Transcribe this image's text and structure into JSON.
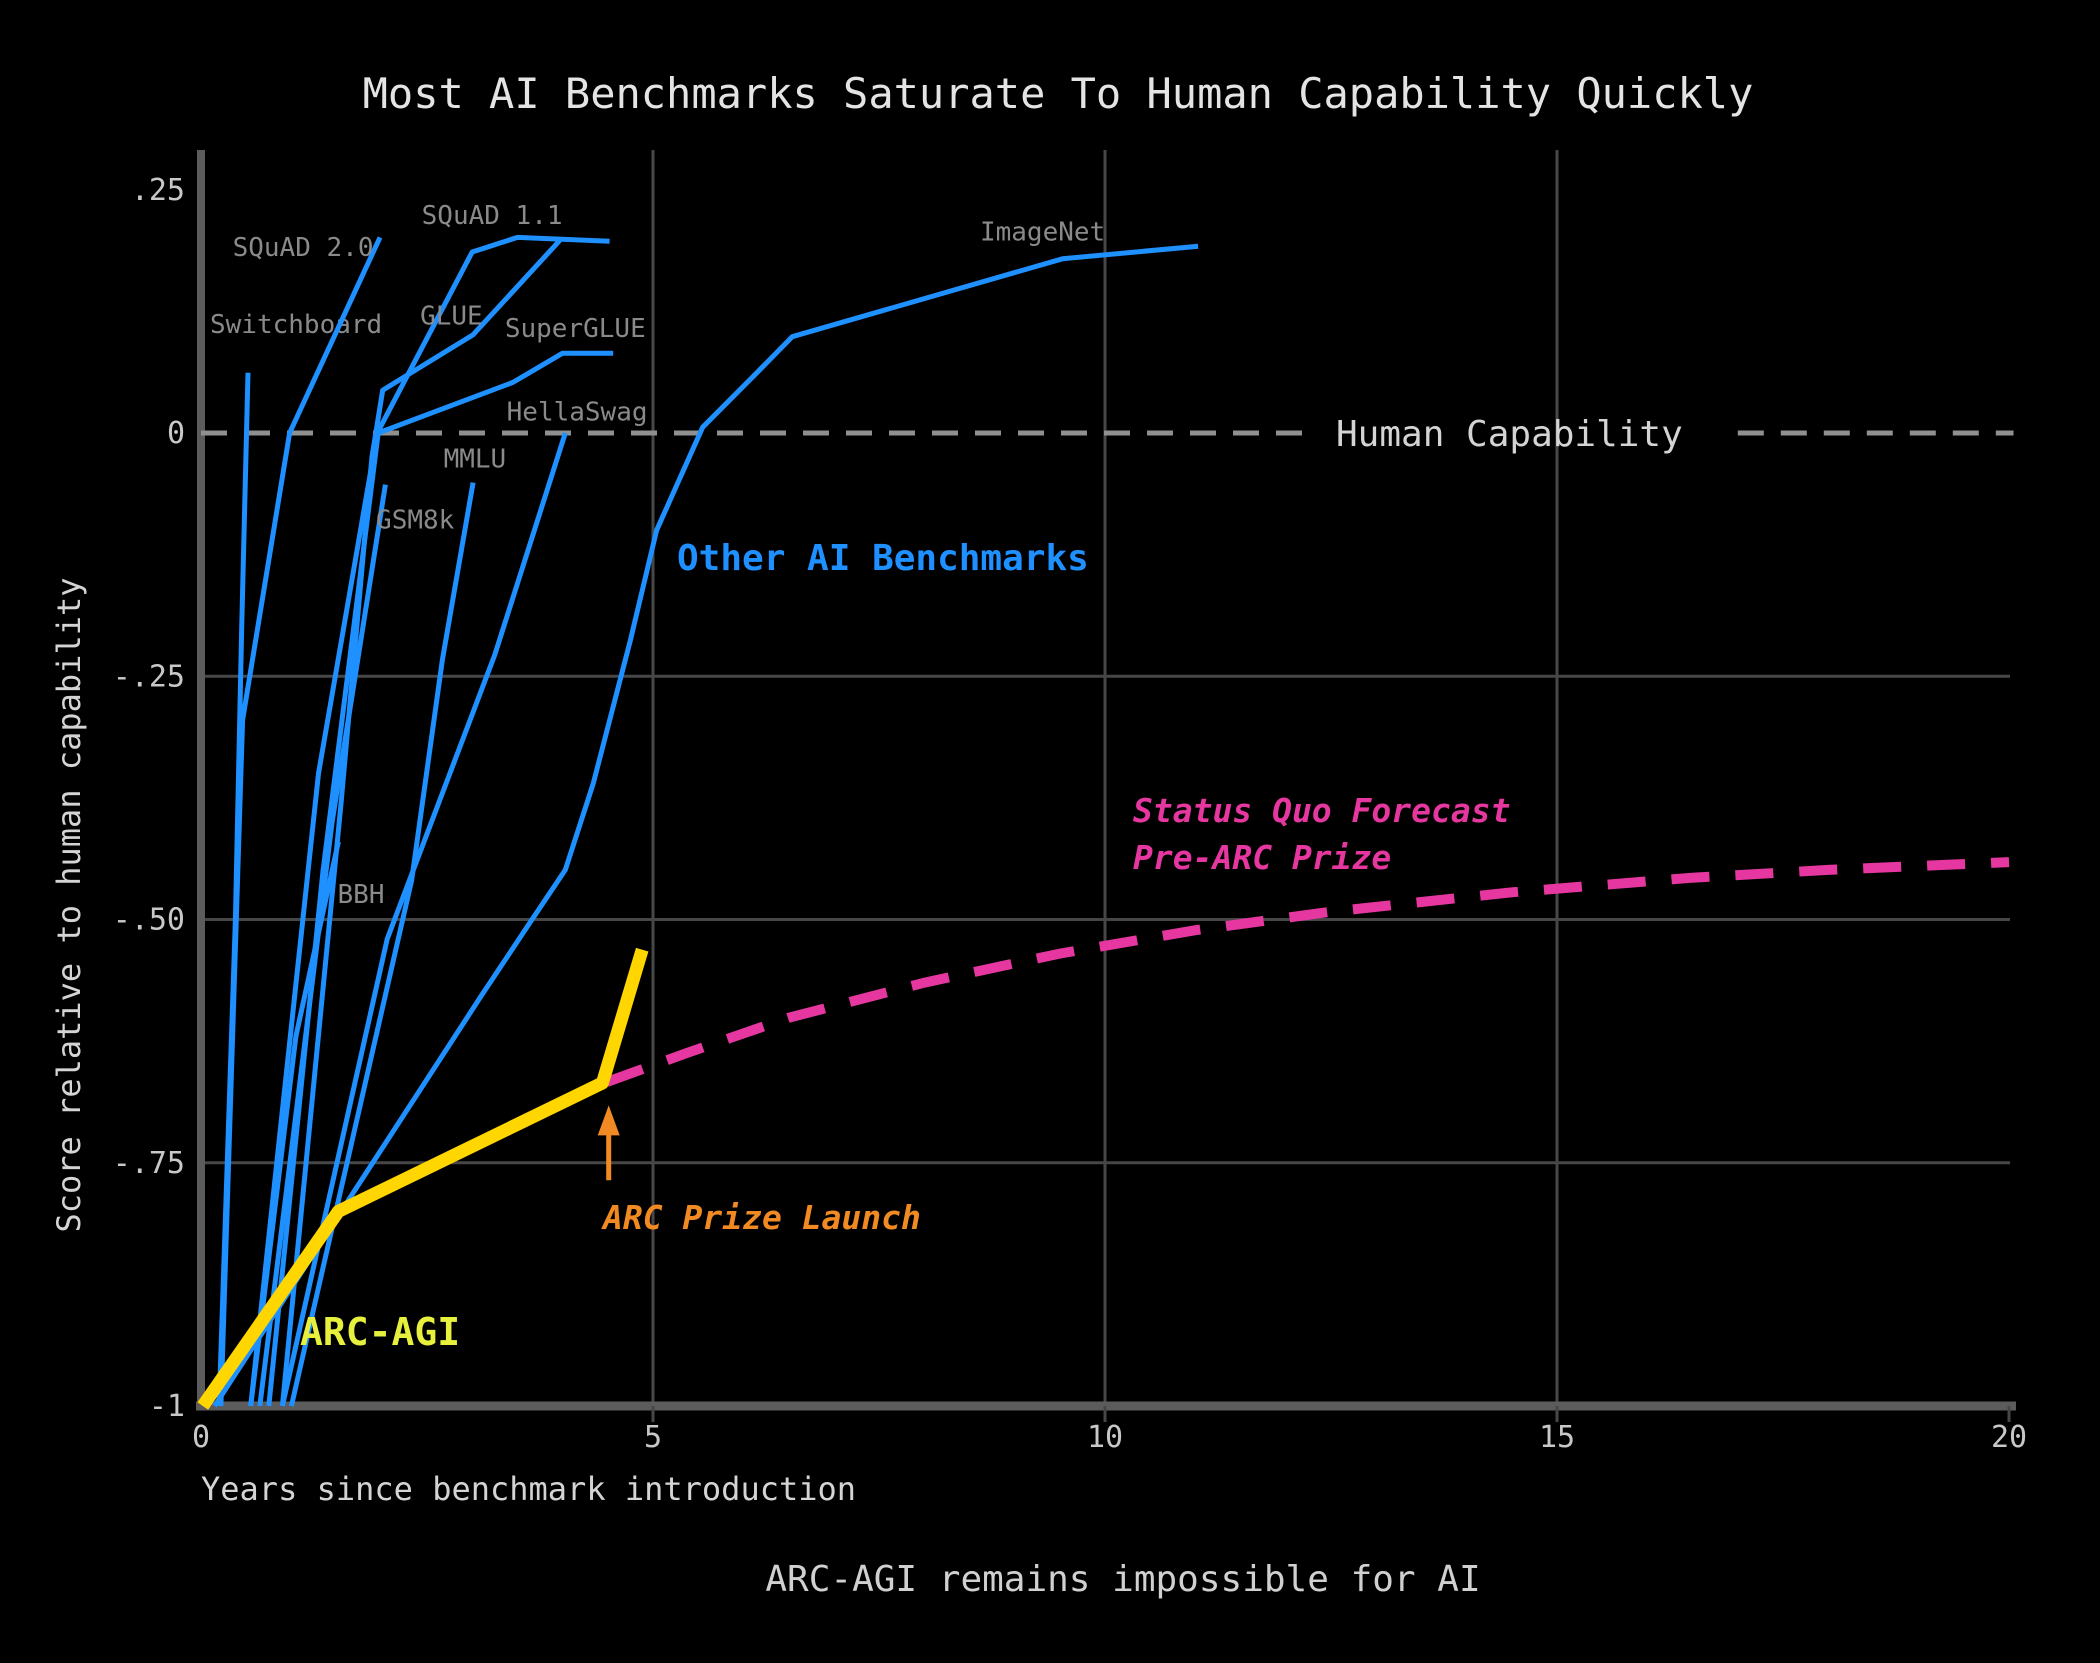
{
  "caption": "ARC-AGI remains impossible for AI",
  "colors": {
    "background": "#000000",
    "benchmark_blue": "#1E90FF",
    "arc_agi_yellow": "#FFD600",
    "arc_agi_label_lime": "#E7F13D",
    "forecast_pink": "#E5379F",
    "arc_prize_orange": "#F18A22",
    "human_dash_gray": "#909090",
    "grid_gray": "#474747",
    "spine_gray": "#5C5C5C",
    "series_label_gray": "#8A8A8A",
    "tick_label_gray": "#C8C8C8",
    "text_light": "#DADADA"
  },
  "chart_data": {
    "type": "line",
    "title": "Most AI Benchmarks Saturate To Human Capability Quickly",
    "xlabel": "Years since benchmark introduction",
    "ylabel": "Score relative to human capability",
    "xlim": [
      0,
      20
    ],
    "ylim": [
      -1,
      0.25
    ],
    "grid": true,
    "x_ticks": [
      {
        "v": 0,
        "label": "0"
      },
      {
        "v": 5,
        "label": "5"
      },
      {
        "v": 10,
        "label": "10"
      },
      {
        "v": 15,
        "label": "15"
      },
      {
        "v": 20,
        "label": "20"
      }
    ],
    "y_ticks": [
      {
        "v": 0.25,
        "label": ".25"
      },
      {
        "v": 0,
        "label": "0"
      },
      {
        "v": -0.25,
        "label": "-.25"
      },
      {
        "v": -0.5,
        "label": "-.50"
      },
      {
        "v": -0.75,
        "label": "-.75"
      },
      {
        "v": -1,
        "label": "-1"
      }
    ],
    "x_gridlines": [
      5,
      10,
      15
    ],
    "x_tick_marks": [
      5,
      10,
      15,
      20
    ],
    "y_gridlines": [
      -0.25,
      -0.5,
      -0.75
    ],
    "human_capability": {
      "label": "Human Capability",
      "value": 0,
      "dash_segments_years": [
        [
          0,
          12.35
        ],
        [
          17.0,
          20.05
        ]
      ],
      "label_year": 12.56
    },
    "other_benchmarks_label": "Other AI Benchmarks",
    "series": [
      {
        "name": "Switchboard",
        "points": [
          [
            0.2,
            -1.0
          ],
          [
            0.38,
            -0.5
          ],
          [
            0.45,
            -0.2
          ],
          [
            0.52,
            0.062
          ]
        ],
        "label": {
          "text": "Switchboard",
          "year": 0.1,
          "score": 0.112,
          "anchor": "start"
        }
      },
      {
        "name": "SQuAD 2.0",
        "points": [
          [
            0.22,
            -1.0
          ],
          [
            0.46,
            -0.295
          ],
          [
            0.98,
            0.0
          ],
          [
            1.98,
            0.201
          ]
        ],
        "label": {
          "text": "SQuAD 2.0",
          "year": 0.35,
          "score": 0.191,
          "anchor": "start"
        }
      },
      {
        "name": "SQuAD 1.1",
        "points": [
          [
            0.55,
            -1.0
          ],
          [
            1.3,
            -0.35
          ],
          [
            1.95,
            0.0
          ],
          [
            3.0,
            0.186
          ],
          [
            3.5,
            0.201
          ],
          [
            4.52,
            0.197
          ]
        ],
        "label": {
          "text": "SQuAD 1.1",
          "year": 3.22,
          "score": 0.224,
          "anchor": "middle"
        }
      },
      {
        "name": "GLUE",
        "points": [
          [
            0.9,
            -1.0
          ],
          [
            1.55,
            -0.38
          ],
          [
            1.89,
            -0.025
          ],
          [
            2.01,
            0.044
          ],
          [
            3.01,
            0.101
          ],
          [
            3.97,
            0.198
          ]
        ],
        "label": {
          "text": "GLUE",
          "year": 2.77,
          "score": 0.121,
          "anchor": "middle"
        }
      },
      {
        "name": "SuperGLUE",
        "points": [
          [
            0.75,
            -1.0
          ],
          [
            1.35,
            -0.45
          ],
          [
            1.96,
            0.0
          ],
          [
            3.45,
            0.052
          ],
          [
            4.0,
            0.082
          ],
          [
            4.56,
            0.082
          ]
        ],
        "label": {
          "text": "SuperGLUE",
          "year": 4.14,
          "score": 0.108,
          "anchor": "middle"
        }
      },
      {
        "name": "HellaSwag",
        "points": [
          [
            0.9,
            -1.0
          ],
          [
            2.06,
            -0.52
          ],
          [
            3.25,
            -0.228
          ],
          [
            4.03,
            0.0
          ]
        ],
        "label": {
          "text": "HellaSwag",
          "year": 4.16,
          "score": 0.022,
          "anchor": "middle"
        }
      },
      {
        "name": "MMLU",
        "points": [
          [
            1.0,
            -1.0
          ],
          [
            2.33,
            -0.46
          ],
          [
            2.67,
            -0.233
          ],
          [
            3.01,
            -0.051
          ]
        ],
        "label": {
          "text": "MMLU",
          "year": 3.03,
          "score": -0.026,
          "anchor": "middle"
        }
      },
      {
        "name": "GSM8k",
        "points": [
          [
            0.65,
            -1.0
          ],
          [
            1.45,
            -0.4
          ],
          [
            2.04,
            -0.053
          ]
        ],
        "label": {
          "text": "GSM8k",
          "year": 2.37,
          "score": -0.089,
          "anchor": "middle"
        }
      },
      {
        "name": "BBH",
        "points": [
          [
            0.55,
            -1.0
          ],
          [
            1.05,
            -0.62
          ],
          [
            1.52,
            -0.42
          ]
        ],
        "label": {
          "text": "BBH",
          "year": 1.77,
          "score": -0.474,
          "anchor": "middle"
        }
      },
      {
        "name": "ImageNet",
        "points": [
          [
            0.15,
            -1.0
          ],
          [
            3.09,
            -0.58
          ],
          [
            3.64,
            -0.503
          ],
          [
            4.03,
            -0.449
          ],
          [
            4.34,
            -0.36
          ],
          [
            4.75,
            -0.213
          ],
          [
            5.04,
            -0.1
          ],
          [
            5.55,
            0.006
          ],
          [
            6.16,
            0.063
          ],
          [
            6.54,
            0.099
          ],
          [
            9.53,
            0.179
          ],
          [
            11.03,
            0.192
          ]
        ],
        "label": {
          "text": "ImageNet",
          "year": 9.31,
          "score": 0.207,
          "anchor": "middle"
        }
      }
    ],
    "arc_agi": {
      "name": "ARC-AGI",
      "points": [
        [
          0.02,
          -1.0
        ],
        [
          1.52,
          -0.8
        ],
        [
          4.44,
          -0.668
        ],
        [
          4.88,
          -0.531
        ]
      ],
      "label": "ARC-AGI"
    },
    "forecast": {
      "name": "Status Quo Forecast Pre-ARC Prize",
      "points": [
        [
          4.49,
          -0.667
        ],
        [
          5.38,
          -0.637
        ],
        [
          6.5,
          -0.601
        ],
        [
          8.0,
          -0.565
        ],
        [
          9.5,
          -0.535
        ],
        [
          11.0,
          -0.511
        ],
        [
          12.5,
          -0.492
        ],
        [
          14.5,
          -0.472
        ],
        [
          16.5,
          -0.457
        ],
        [
          18.0,
          -0.449
        ],
        [
          20.0,
          -0.441
        ]
      ],
      "label_line1": "Status Quo Forecast",
      "label_line2": "Pre-ARC Prize"
    },
    "arrow": {
      "label": "ARC Prize Launch",
      "year": 4.51,
      "score_tail": -0.768,
      "score_head": -0.691
    }
  }
}
